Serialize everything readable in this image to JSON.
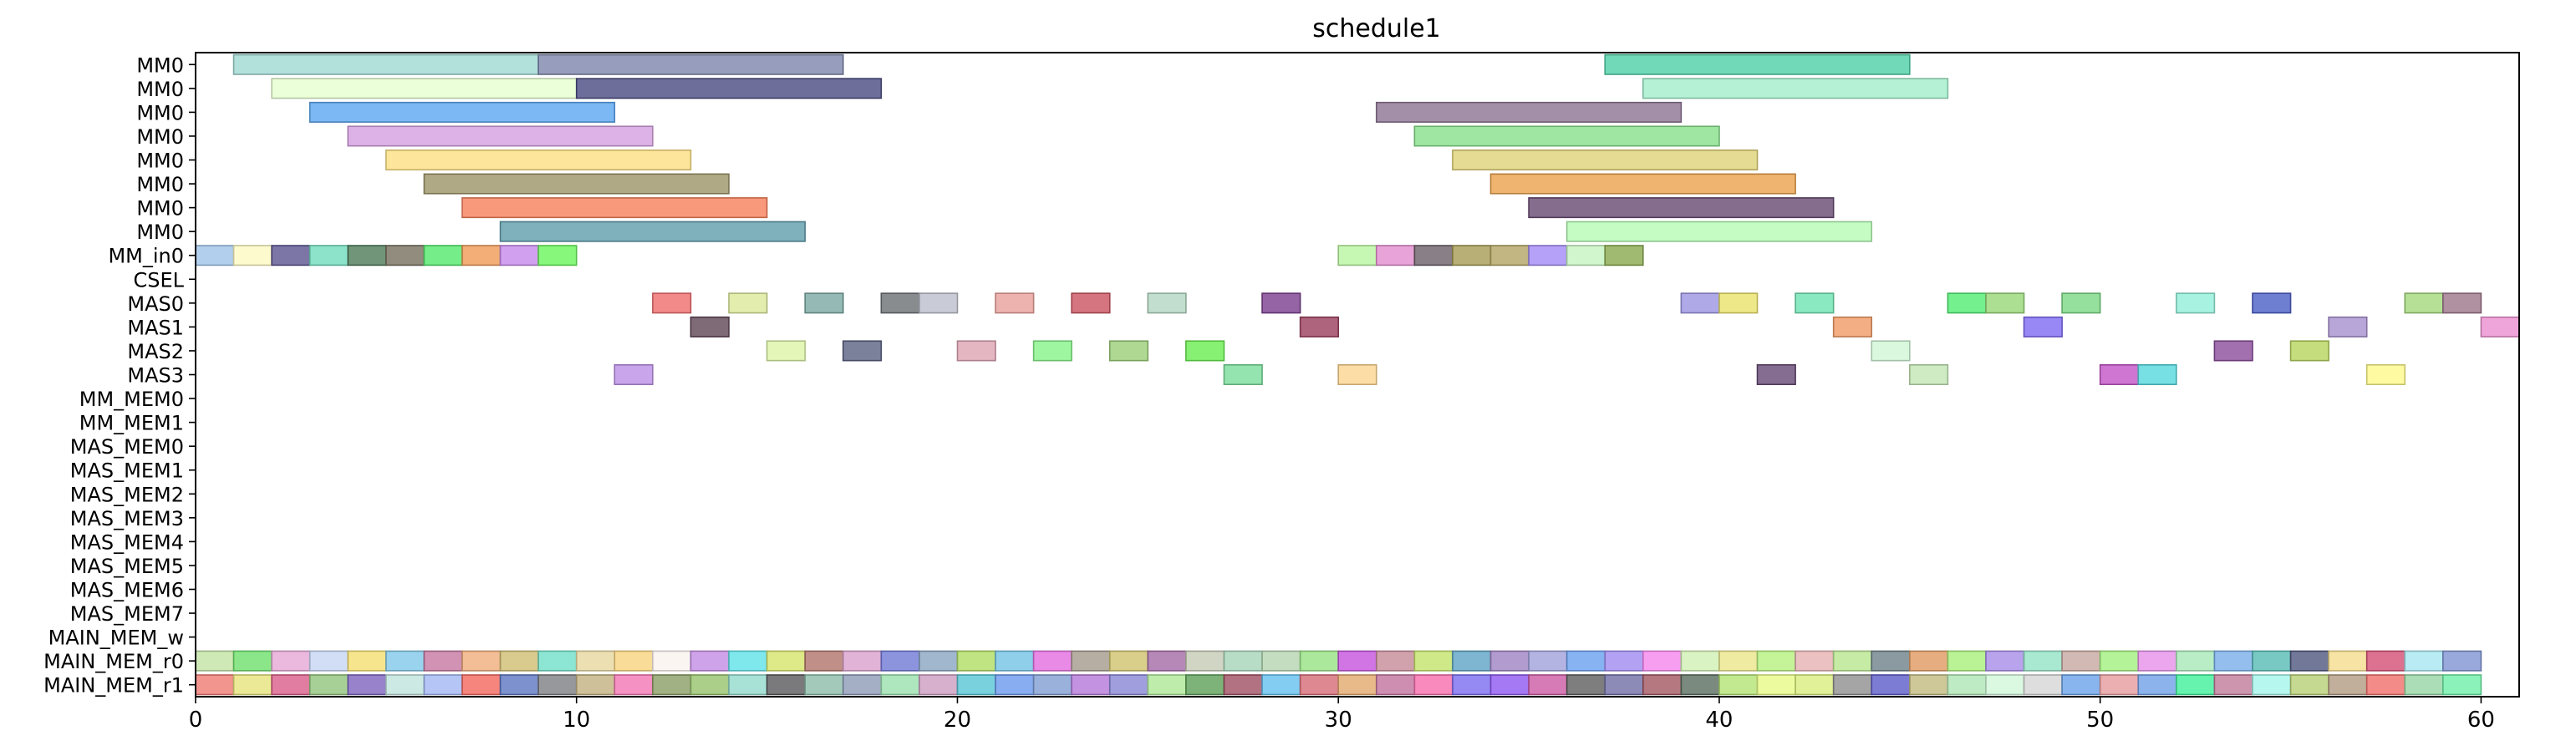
{
  "chart_data": {
    "type": "gantt",
    "title": "schedule1",
    "xlim": [
      0,
      61
    ],
    "xticks": [
      0,
      10,
      20,
      30,
      40,
      50,
      60
    ],
    "grid": false,
    "rows": [
      "MM0",
      "MM0",
      "MM0",
      "MM0",
      "MM0",
      "MM0",
      "MM0",
      "MM0",
      "MM_in0",
      "CSEL",
      "MAS0",
      "MAS1",
      "MAS2",
      "MAS3",
      "MM_MEM0",
      "MM_MEM1",
      "MAS_MEM0",
      "MAS_MEM1",
      "MAS_MEM2",
      "MAS_MEM3",
      "MAS_MEM4",
      "MAS_MEM5",
      "MAS_MEM6",
      "MAS_MEM7",
      "MAIN_MEM_w",
      "MAIN_MEM_r0",
      "MAIN_MEM_r1"
    ],
    "tasks": [
      {
        "row": 0,
        "start": 1,
        "end": 9,
        "color": "#9fd8d2"
      },
      {
        "row": 0,
        "start": 9,
        "end": 17,
        "color": "#7d86ac"
      },
      {
        "row": 0,
        "start": 37,
        "end": 45,
        "color": "#4ecfa6"
      },
      {
        "row": 1,
        "start": 2,
        "end": 10,
        "color": "#e6ffd0"
      },
      {
        "row": 1,
        "start": 10,
        "end": 18,
        "color": "#4a4a82"
      },
      {
        "row": 1,
        "start": 38,
        "end": 46,
        "color": "#a3efcb"
      },
      {
        "row": 2,
        "start": 3,
        "end": 11,
        "color": "#5ba6f0"
      },
      {
        "row": 2,
        "start": 31,
        "end": 39,
        "color": "#8c7392"
      },
      {
        "row": 3,
        "start": 4,
        "end": 12,
        "color": "#d59fe0"
      },
      {
        "row": 3,
        "start": 32,
        "end": 40,
        "color": "#86e08a"
      },
      {
        "row": 4,
        "start": 5,
        "end": 13,
        "color": "#fde083"
      },
      {
        "row": 4,
        "start": 33,
        "end": 41,
        "color": "#e0d278"
      },
      {
        "row": 5,
        "start": 6,
        "end": 14,
        "color": "#9c9367"
      },
      {
        "row": 5,
        "start": 34,
        "end": 42,
        "color": "#eba24c"
      },
      {
        "row": 6,
        "start": 7,
        "end": 15,
        "color": "#f7805a"
      },
      {
        "row": 6,
        "start": 35,
        "end": 43,
        "color": "#664971"
      },
      {
        "row": 7,
        "start": 8,
        "end": 16,
        "color": "#5f9dad"
      },
      {
        "row": 7,
        "start": 36,
        "end": 44,
        "color": "#b5fbb4"
      },
      {
        "row": 8,
        "start": 0,
        "end": 1,
        "color": "#9fc4ea"
      },
      {
        "row": 8,
        "start": 1,
        "end": 2,
        "color": "#fdf9c2"
      },
      {
        "row": 8,
        "start": 2,
        "end": 3,
        "color": "#5a548e"
      },
      {
        "row": 8,
        "start": 3,
        "end": 4,
        "color": "#6fdcbb"
      },
      {
        "row": 8,
        "start": 4,
        "end": 5,
        "color": "#4c7a58"
      },
      {
        "row": 8,
        "start": 5,
        "end": 6,
        "color": "#776f5f"
      },
      {
        "row": 8,
        "start": 6,
        "end": 7,
        "color": "#52e86c"
      },
      {
        "row": 8,
        "start": 7,
        "end": 8,
        "color": "#f09a56"
      },
      {
        "row": 8,
        "start": 8,
        "end": 9,
        "color": "#c688ea"
      },
      {
        "row": 8,
        "start": 9,
        "end": 10,
        "color": "#68f55a"
      },
      {
        "row": 8,
        "start": 30,
        "end": 31,
        "color": "#b8f5a0"
      },
      {
        "row": 8,
        "start": 31,
        "end": 32,
        "color": "#e28cce"
      },
      {
        "row": 8,
        "start": 32,
        "end": 33,
        "color": "#6b5f68"
      },
      {
        "row": 8,
        "start": 33,
        "end": 34,
        "color": "#a59b52"
      },
      {
        "row": 8,
        "start": 34,
        "end": 35,
        "color": "#b3a464"
      },
      {
        "row": 8,
        "start": 35,
        "end": 36,
        "color": "#a28af5"
      },
      {
        "row": 8,
        "start": 36,
        "end": 37,
        "color": "#c5f2c0"
      },
      {
        "row": 8,
        "start": 37,
        "end": 38,
        "color": "#88aa4e"
      },
      {
        "row": 10,
        "start": 12,
        "end": 13,
        "color": "#f06d6d"
      },
      {
        "row": 10,
        "start": 14,
        "end": 15,
        "color": "#dbe89a"
      },
      {
        "row": 10,
        "start": 16,
        "end": 17,
        "color": "#7aa8a2"
      },
      {
        "row": 10,
        "start": 18,
        "end": 19,
        "color": "#6b6f73"
      },
      {
        "row": 10,
        "start": 19,
        "end": 20,
        "color": "#bcbfcc"
      },
      {
        "row": 10,
        "start": 21,
        "end": 22,
        "color": "#e9a09a"
      },
      {
        "row": 10,
        "start": 23,
        "end": 24,
        "color": "#c9535f"
      },
      {
        "row": 10,
        "start": 25,
        "end": 26,
        "color": "#b2d6c2"
      },
      {
        "row": 10,
        "start": 28,
        "end": 29,
        "color": "#7a3d8e"
      },
      {
        "row": 10,
        "start": 39,
        "end": 40,
        "color": "#9b94e2"
      },
      {
        "row": 10,
        "start": 40,
        "end": 41,
        "color": "#ebe26a"
      },
      {
        "row": 10,
        "start": 42,
        "end": 43,
        "color": "#6ee3b1"
      },
      {
        "row": 10,
        "start": 46,
        "end": 47,
        "color": "#51ec73"
      },
      {
        "row": 10,
        "start": 47,
        "end": 48,
        "color": "#98d777"
      },
      {
        "row": 10,
        "start": 49,
        "end": 50,
        "color": "#7ad883"
      },
      {
        "row": 10,
        "start": 52,
        "end": 53,
        "color": "#92efd9"
      },
      {
        "row": 10,
        "start": 54,
        "end": 55,
        "color": "#4a5ec6"
      },
      {
        "row": 10,
        "start": 58,
        "end": 59,
        "color": "#a3d87c"
      },
      {
        "row": 10,
        "start": 59,
        "end": 60,
        "color": "#9c7589"
      },
      {
        "row": 11,
        "start": 13,
        "end": 14,
        "color": "#5f4656"
      },
      {
        "row": 11,
        "start": 29,
        "end": 30,
        "color": "#9b3d5d"
      },
      {
        "row": 11,
        "start": 43,
        "end": 44,
        "color": "#f09b64"
      },
      {
        "row": 11,
        "start": 48,
        "end": 49,
        "color": "#7e6af2"
      },
      {
        "row": 11,
        "start": 56,
        "end": 57,
        "color": "#a890cf"
      },
      {
        "row": 11,
        "start": 60,
        "end": 61,
        "color": "#eb8fcf"
      },
      {
        "row": 12,
        "start": 15,
        "end": 16,
        "color": "#ddf5a7"
      },
      {
        "row": 12,
        "start": 17,
        "end": 18,
        "color": "#5a6082"
      },
      {
        "row": 12,
        "start": 20,
        "end": 21,
        "color": "#dca4b3"
      },
      {
        "row": 12,
        "start": 22,
        "end": 23,
        "color": "#86f48a"
      },
      {
        "row": 12,
        "start": 24,
        "end": 25,
        "color": "#9bcf77"
      },
      {
        "row": 12,
        "start": 26,
        "end": 27,
        "color": "#68ee4f"
      },
      {
        "row": 12,
        "start": 44,
        "end": 45,
        "color": "#d0f6d6"
      },
      {
        "row": 12,
        "start": 53,
        "end": 54,
        "color": "#8b4c9b"
      },
      {
        "row": 12,
        "start": 55,
        "end": 56,
        "color": "#b6d45d"
      },
      {
        "row": 13,
        "start": 11,
        "end": 12,
        "color": "#bb8fe6"
      },
      {
        "row": 13,
        "start": 27,
        "end": 28,
        "color": "#78dd9a"
      },
      {
        "row": 13,
        "start": 30,
        "end": 31,
        "color": "#fdd590"
      },
      {
        "row": 13,
        "start": 41,
        "end": 42,
        "color": "#654874"
      },
      {
        "row": 13,
        "start": 45,
        "end": 46,
        "color": "#c3e6b4"
      },
      {
        "row": 13,
        "start": 50,
        "end": 51,
        "color": "#c254c7"
      },
      {
        "row": 13,
        "start": 51,
        "end": 52,
        "color": "#54d8dd"
      },
      {
        "row": 13,
        "start": 57,
        "end": 58,
        "color": "#fdf98a"
      }
    ],
    "main_r0_colors": [
      "#c3e3a4",
      "#6de06b",
      "#e6a7d6",
      "#c6d6f4",
      "#f5df70",
      "#80c8e8",
      "#c677a0",
      "#f0ac7a",
      "#cfbd72",
      "#6fe0c8",
      "#e7d8a0",
      "#f9d37f",
      "#faf2ef",
      "#c38ce3",
      "#5ee2e8",
      "#d6e36a",
      "#b0746a",
      "#d9a0cc",
      "#7079d6",
      "#89a5c2",
      "#b0dd62",
      "#73c3e5",
      "#e46ee0",
      "#a59a8c",
      "#cfc36e",
      "#a46aa6",
      "#c6cbb5",
      "#a6d4b8",
      "#b5d5b0",
      "#97e283",
      "#c452dc",
      "#c58a97",
      "#c4e46a",
      "#5ea3c4",
      "#9f82c2",
      "#a1a1dc",
      "#6aa0f0",
      "#a08af0",
      "#f686ee",
      "#d1f0b4",
      "#ebe68a",
      "#b7f07e",
      "#e6b2b2",
      "#b8e68e",
      "#6e7f88",
      "#e09a60",
      "#a8f07a",
      "#a88ce8",
      "#93e2c5",
      "#c8a7a0",
      "#a3f07e",
      "#e690ea",
      "#a7e8b8",
      "#79aeea",
      "#56bcb5",
      "#4f567d",
      "#f5dc8c",
      "#d44e74",
      "#a6e6f0",
      "#7f93d2"
    ],
    "main_r1_colors": [
      "#f07a73",
      "#e6e47c",
      "#da5c88",
      "#91c47c",
      "#7d63be",
      "#bfe3dc",
      "#a3b7f4",
      "#f4675c",
      "#5b75c0",
      "#7c7e82",
      "#c2b07e",
      "#f276b4",
      "#8a9e64",
      "#96c26a",
      "#92d9cc",
      "#59585a",
      "#8cbcaa",
      "#8d9bb8",
      "#9ae0ae",
      "#cc9cc0",
      "#58c6d6",
      "#6a99ec",
      "#7f9ed2",
      "#b477d8",
      "#8a86d6",
      "#aee996",
      "#5da058",
      "#a04f62",
      "#64c0f0",
      "#d66a76",
      "#e2a86c",
      "#c2729e",
      "#f66dad",
      "#7a6cf0",
      "#8e58f0",
      "#cc5aa4",
      "#5e5e5e",
      "#6f6ea6",
      "#a35662",
      "#5a6d5e",
      "#b4e474",
      "#e6fa86",
      "#d9ed7e",
      "#8e8e8e",
      "#5b5bc9",
      "#c2ba80",
      "#aee6b4",
      "#d2f6da",
      "#d6d6d6",
      "#6aa3e8",
      "#e69a9e",
      "#6fa0e6",
      "#3ef09a",
      "#c07a9a",
      "#a4f6ec",
      "#b8d074",
      "#b29a82",
      "#f06f6a",
      "#96d6a4",
      "#6ef0a8"
    ]
  }
}
